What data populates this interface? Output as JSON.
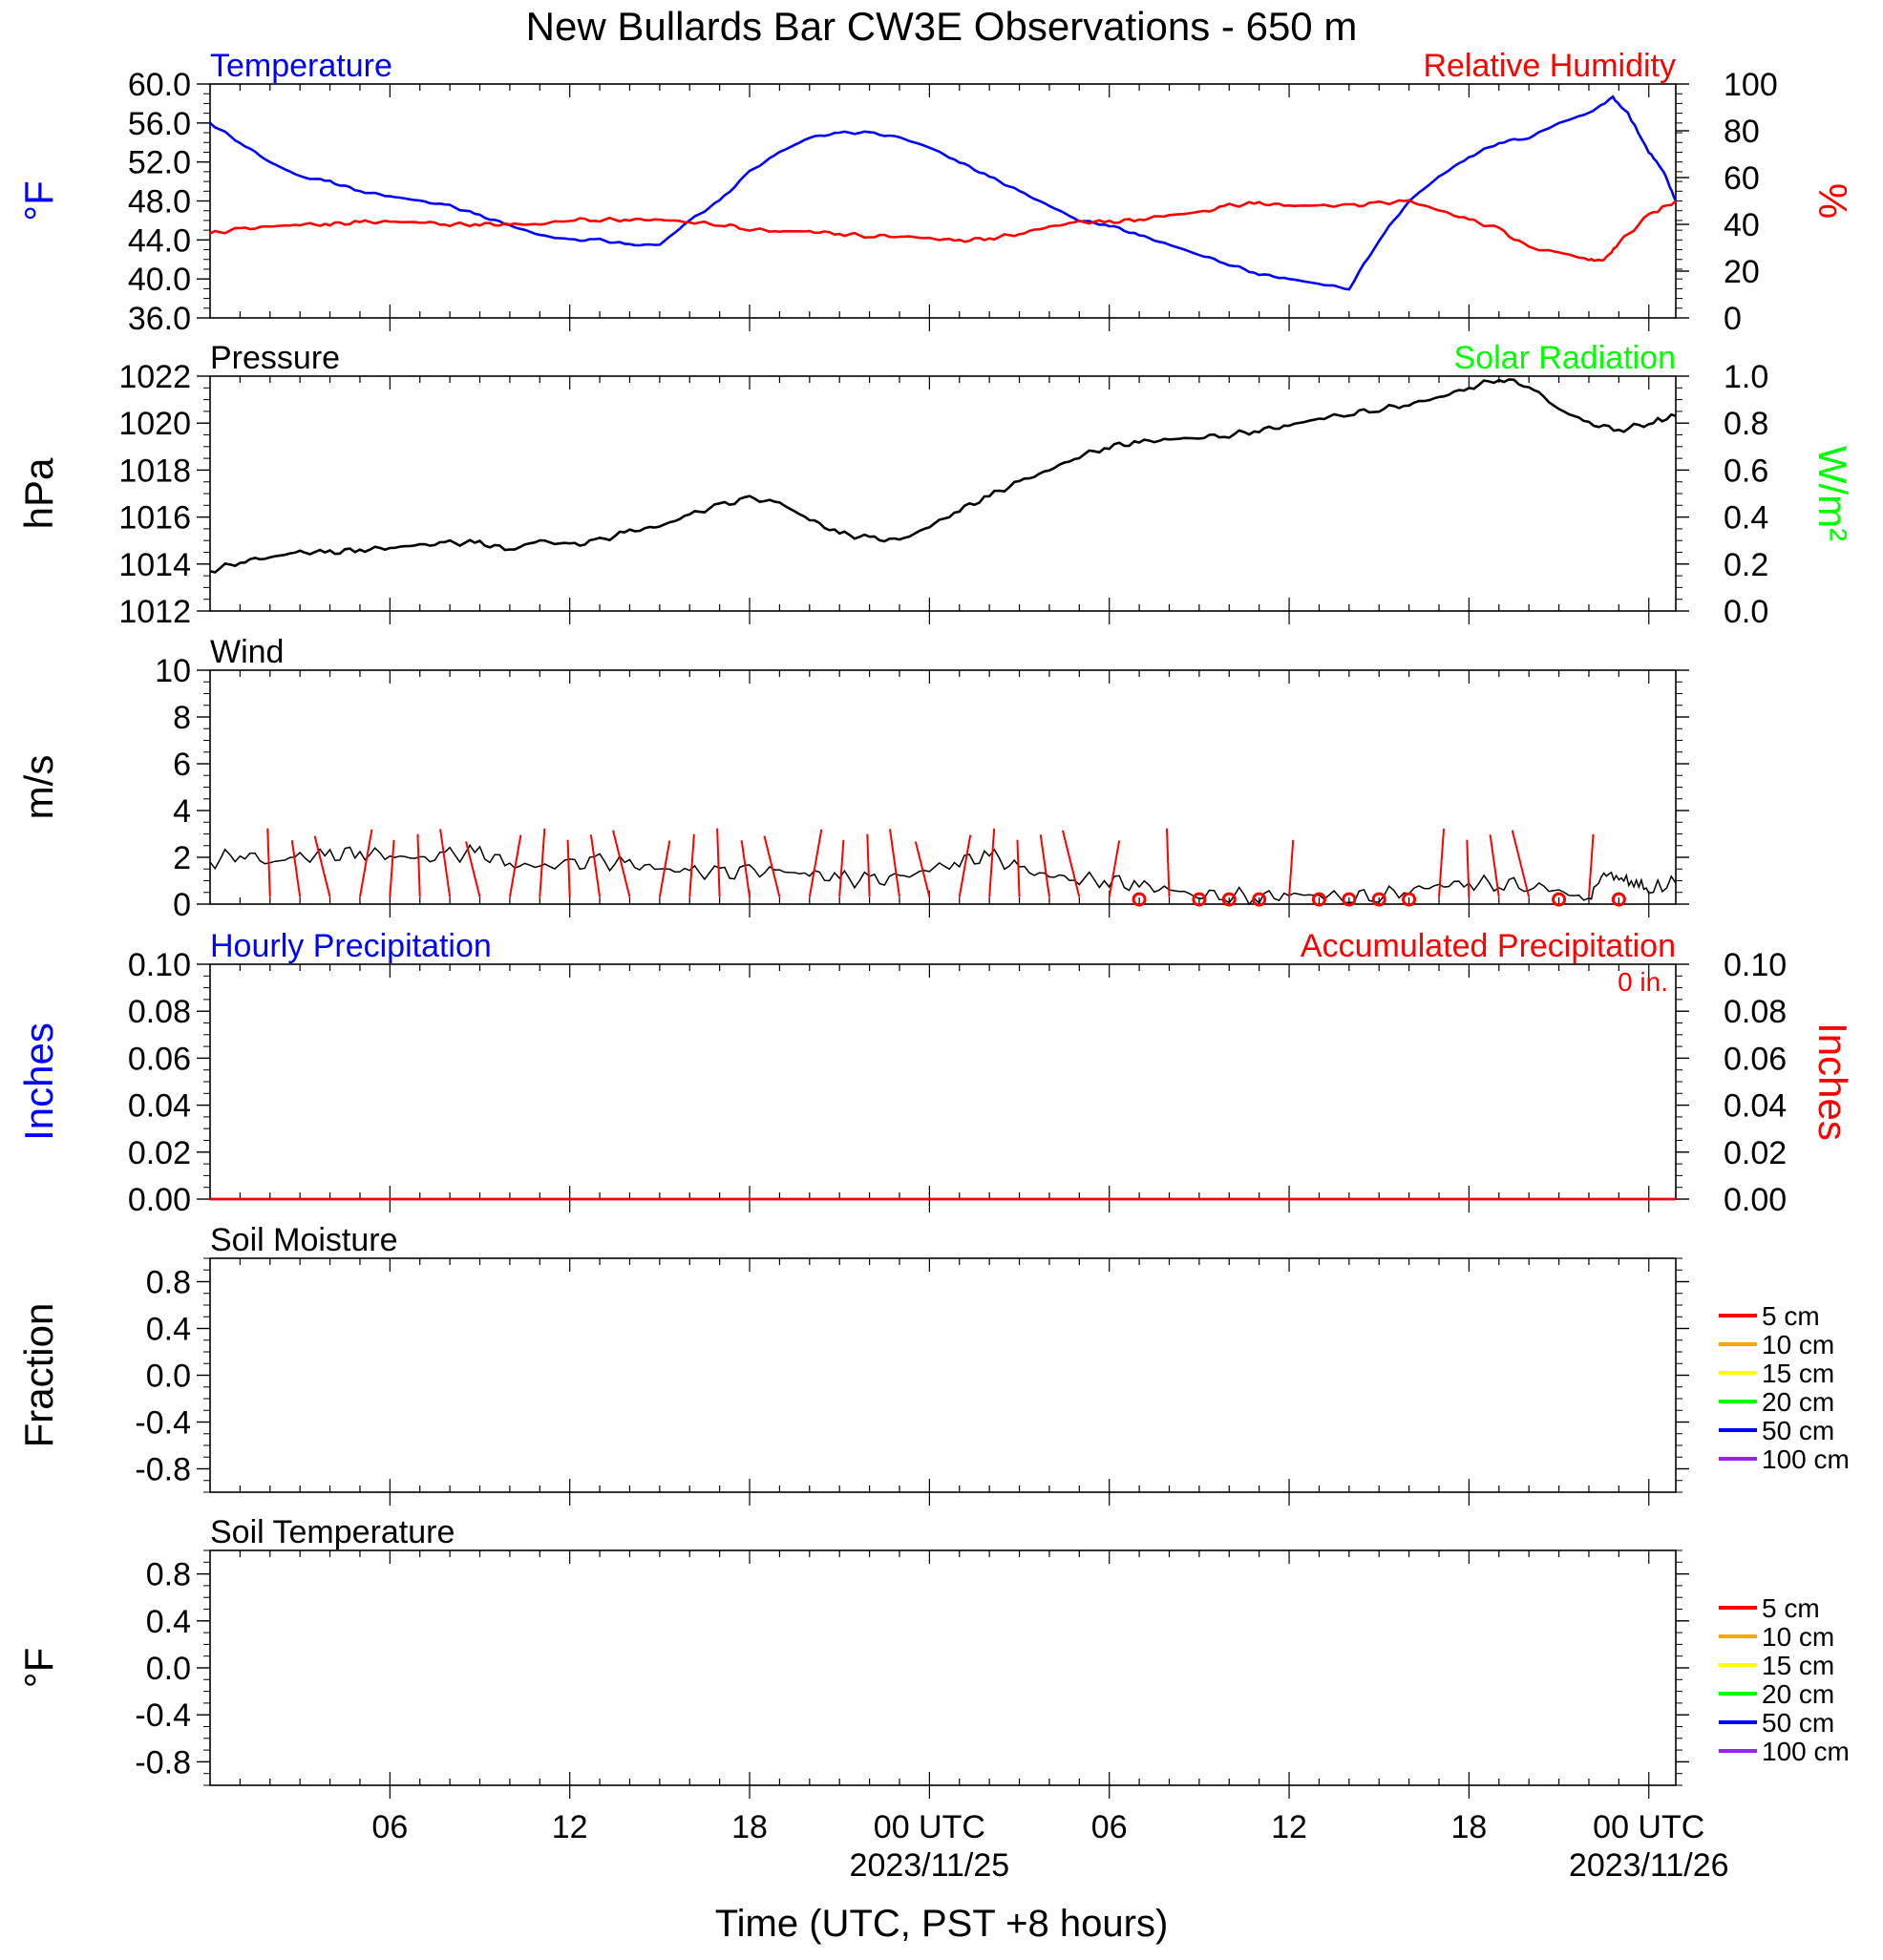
{
  "title": "New Bullards Bar CW3E Observations - 650 m",
  "xlabel": "Time (UTC, PST +8 hours)",
  "x_ticks": [
    {
      "hour": 6,
      "label": "06",
      "sub": ""
    },
    {
      "hour": 12,
      "label": "12",
      "sub": ""
    },
    {
      "hour": 18,
      "label": "18",
      "sub": ""
    },
    {
      "hour": 24,
      "label": "00 UTC",
      "sub": "2023/11/25"
    },
    {
      "hour": 30,
      "label": "06",
      "sub": ""
    },
    {
      "hour": 36,
      "label": "12",
      "sub": ""
    },
    {
      "hour": 42,
      "label": "18",
      "sub": ""
    },
    {
      "hour": 48,
      "label": "00 UTC",
      "sub": "2023/11/26"
    }
  ],
  "colors": {
    "temperature": "#0000ff",
    "humidity": "#ff0000",
    "pressure": "#000000",
    "solar": "#00ff00",
    "wind": "#000000",
    "barbs": "#ff0000",
    "hourly_precip": "#0000ff",
    "accum_precip": "#ff0000"
  },
  "chart_data": [
    {
      "type": "line",
      "left_title": "Temperature",
      "right_title": "Relative Humidity",
      "ylabel": "°F",
      "ylabel_right": "%",
      "ylim": [
        36,
        60
      ],
      "yticks": [
        "36.0",
        "40.0",
        "44.0",
        "48.0",
        "52.0",
        "56.0",
        "60.0"
      ],
      "ylim_right": [
        0,
        100
      ],
      "yticks_right": [
        "0",
        "20",
        "40",
        "60",
        "80",
        "100"
      ],
      "xlim_hours": [
        0,
        48.9
      ],
      "series": [
        {
          "axis": "left",
          "color": "#0000ff",
          "x": [
            0,
            1,
            2,
            3,
            4,
            5,
            6,
            7,
            8,
            9,
            10,
            11,
            12,
            13,
            14,
            15,
            16,
            17,
            18,
            19,
            20,
            21,
            22,
            23,
            24,
            25,
            26,
            27,
            28,
            29,
            30,
            31,
            32,
            33,
            34,
            35,
            36,
            37,
            38,
            39,
            40,
            41,
            42,
            43,
            44,
            45,
            46,
            46.8,
            47.3,
            48,
            48.5,
            48.9
          ],
          "y": [
            56,
            54,
            52,
            50.5,
            50,
            49,
            48.5,
            48,
            47.5,
            46.5,
            45.5,
            44.5,
            44,
            44,
            43.5,
            43.5,
            46,
            48,
            51,
            53,
            54.5,
            55,
            55,
            54.5,
            53.5,
            52,
            50.5,
            49,
            47.5,
            46,
            45.5,
            44.5,
            43.5,
            42.5,
            41.5,
            40.5,
            40,
            39.5,
            39,
            44,
            48,
            50.5,
            52.5,
            54,
            54.5,
            56,
            57,
            58.6,
            57,
            53,
            51,
            48
          ]
        },
        {
          "axis": "right",
          "color": "#ff0000",
          "x": [
            0,
            1,
            2,
            3,
            4,
            5,
            6,
            7,
            8,
            9,
            10,
            11,
            12,
            13,
            14,
            15,
            16,
            17,
            18,
            19,
            20,
            21,
            22,
            23,
            24,
            25,
            26,
            27,
            28,
            29,
            30,
            31,
            32,
            33,
            34,
            35,
            36,
            37,
            38,
            39,
            40,
            41,
            42,
            43,
            44,
            45,
            46,
            46.5,
            47,
            48,
            48.9
          ],
          "y": [
            36,
            38,
            39,
            40,
            40,
            41,
            41,
            41,
            40,
            40,
            40,
            40,
            42,
            42,
            42,
            42,
            41,
            40,
            38,
            37,
            37,
            36,
            35,
            35,
            34,
            33,
            34,
            36,
            39,
            41,
            41,
            42,
            44,
            45,
            48,
            49,
            48,
            48,
            48,
            49,
            50,
            46,
            42,
            38,
            30,
            28,
            25,
            25,
            32,
            44,
            50
          ]
        }
      ]
    },
    {
      "type": "line",
      "left_title": "Pressure",
      "right_title": "Solar Radiation",
      "ylabel": "hPa",
      "ylabel_right": "W/m²",
      "ylim": [
        1012,
        1022
      ],
      "yticks": [
        "1012",
        "1014",
        "1016",
        "1018",
        "1020",
        "1022"
      ],
      "ylim_right": [
        0,
        1
      ],
      "yticks_right": [
        "0.0",
        "0.2",
        "0.4",
        "0.6",
        "0.8",
        "1.0"
      ],
      "xlim_hours": [
        0,
        48.9
      ],
      "series": [
        {
          "axis": "left",
          "color": "#000000",
          "x": [
            0,
            1,
            2,
            3,
            4,
            5,
            6,
            7,
            8,
            9,
            10,
            11,
            12,
            13,
            14,
            15,
            16,
            17,
            18,
            19,
            20,
            21,
            22,
            23,
            24,
            25,
            26,
            27,
            28,
            29,
            30,
            31,
            32,
            33,
            34,
            35,
            36,
            37,
            38,
            39,
            40,
            41,
            42,
            43,
            44,
            45,
            46,
            47,
            48,
            48.9
          ],
          "y": [
            1013.7,
            1014.1,
            1014.3,
            1014.5,
            1014.5,
            1014.6,
            1014.7,
            1014.8,
            1014.9,
            1014.9,
            1014.6,
            1015,
            1014.8,
            1015,
            1015.4,
            1015.6,
            1016.1,
            1016.5,
            1016.8,
            1016.6,
            1015.9,
            1015.3,
            1015.1,
            1015,
            1015.6,
            1016.3,
            1016.9,
            1017.5,
            1018,
            1018.6,
            1019,
            1019.2,
            1019.3,
            1019.4,
            1019.5,
            1019.7,
            1019.9,
            1020.2,
            1020.4,
            1020.6,
            1020.8,
            1021.1,
            1021.5,
            1021.9,
            1021.6,
            1020.6,
            1020.0,
            1019.7,
            1020.0,
            1020.3
          ]
        }
      ]
    },
    {
      "type": "line",
      "left_title": "Wind",
      "ylabel": "m/s",
      "ylim": [
        0,
        10
      ],
      "yticks": [
        "0",
        "2",
        "4",
        "6",
        "8",
        "10"
      ],
      "xlim_hours": [
        0,
        48.9
      ],
      "series": [
        {
          "axis": "left",
          "color": "#000000",
          "x": [
            0,
            1,
            2,
            3,
            4,
            5,
            6,
            7,
            8,
            9,
            10,
            11,
            12,
            13,
            14,
            15,
            16,
            17,
            18,
            19,
            20,
            21,
            22,
            23,
            24,
            25,
            26,
            27,
            28,
            29,
            30,
            31,
            32,
            33,
            34,
            35,
            36,
            37,
            38,
            39,
            40,
            41,
            42,
            43,
            44,
            45,
            46,
            46.5,
            47,
            47.5,
            48,
            48.9
          ],
          "y": [
            1.8,
            2.2,
            1.8,
            2,
            2.1,
            2.2,
            2.1,
            1.9,
            2.1,
            2.2,
            1.7,
            1.6,
            1.7,
            1.8,
            1.7,
            1.5,
            1.4,
            1.3,
            1.4,
            1.4,
            1.3,
            1.1,
            1.0,
            1.1,
            1.5,
            1.8,
            2.1,
            1.5,
            1.2,
            1.1,
            1.0,
            0.8,
            0.6,
            0.4,
            0.4,
            0.3,
            0.4,
            0.4,
            0.3,
            0.4,
            0.6,
            0.8,
            0.9,
            0.9,
            0.8,
            0.6,
            0.1,
            1.2,
            1.0,
            0.8,
            0.6,
            0.9
          ]
        }
      ],
      "calm_hours": [
        31,
        33,
        34,
        35,
        37,
        38,
        39,
        40,
        45,
        47
      ]
    },
    {
      "type": "line",
      "left_title": "Hourly Precipitation",
      "right_title": "Accumulated Precipitation",
      "accum_label": "0 in.",
      "ylabel": "Inches",
      "ylabel_right": "Inches",
      "ylim": [
        0,
        0.1
      ],
      "yticks": [
        "0.00",
        "0.02",
        "0.04",
        "0.06",
        "0.08",
        "0.10"
      ],
      "yticks_right": [
        "0.00",
        "0.02",
        "0.04",
        "0.06",
        "0.08",
        "0.10"
      ],
      "xlim_hours": [
        0,
        48.9
      ],
      "series": [
        {
          "axis": "left",
          "color": "#0000ff",
          "x": [
            0,
            48.9
          ],
          "y": [
            0,
            0
          ]
        },
        {
          "axis": "right",
          "color": "#ff0000",
          "x": [
            0,
            48.9
          ],
          "y": [
            0,
            0
          ]
        }
      ]
    },
    {
      "type": "line",
      "left_title": "Soil Moisture",
      "ylabel": "Fraction",
      "ylim": [
        -1,
        1
      ],
      "yticks": [
        "-0.8",
        "-0.4",
        "0.0",
        "0.4",
        "0.8"
      ],
      "legend": [
        {
          "label": "5 cm",
          "color": "#ff0000"
        },
        {
          "label": "10 cm",
          "color": "#ffa500"
        },
        {
          "label": "15 cm",
          "color": "#ffff00"
        },
        {
          "label": "20 cm",
          "color": "#00ff00"
        },
        {
          "label": "50 cm",
          "color": "#0000ff"
        },
        {
          "label": "100 cm",
          "color": "#a020f0"
        }
      ],
      "series": []
    },
    {
      "type": "line",
      "left_title": "Soil Temperature",
      "ylabel": "°F",
      "ylim": [
        -1,
        1
      ],
      "yticks": [
        "-0.8",
        "-0.4",
        "0.0",
        "0.4",
        "0.8"
      ],
      "legend": [
        {
          "label": "5 cm",
          "color": "#ff0000"
        },
        {
          "label": "10 cm",
          "color": "#ffa500"
        },
        {
          "label": "15 cm",
          "color": "#ffff00"
        },
        {
          "label": "20 cm",
          "color": "#00ff00"
        },
        {
          "label": "50 cm",
          "color": "#0000ff"
        },
        {
          "label": "100 cm",
          "color": "#a020f0"
        }
      ],
      "series": []
    }
  ]
}
